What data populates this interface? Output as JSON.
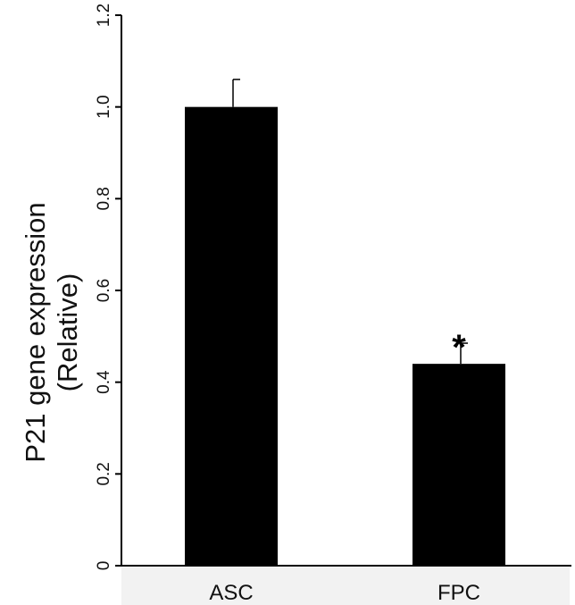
{
  "chart_data": {
    "type": "bar",
    "categories": [
      "ASC",
      "FPC"
    ],
    "values": [
      1.0,
      0.44
    ],
    "errors": [
      0.06,
      0.045
    ],
    "ylabel_lines": [
      "P21 gene expression",
      "(Relative)"
    ],
    "xlabel": "",
    "ylim": [
      0,
      1.2
    ],
    "yticks": [
      0,
      0.2,
      0.4,
      0.6,
      0.8,
      1.0,
      1.2
    ],
    "ytick_labels": [
      "0",
      "0.2",
      "0.4",
      "0.6",
      "0.8",
      "1.0",
      "1.2"
    ],
    "annotations": [
      {
        "category": "FPC",
        "text": "*"
      }
    ],
    "grid": false,
    "legend": false,
    "bar_color": "#000000"
  }
}
